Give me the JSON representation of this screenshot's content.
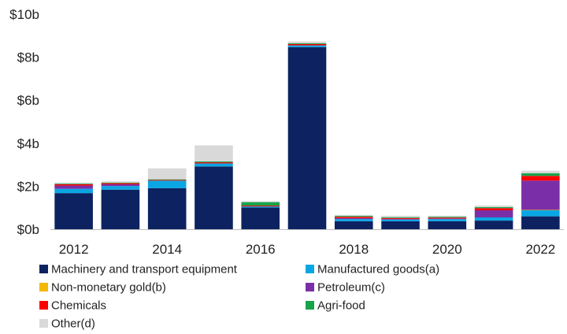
{
  "chart_data": {
    "type": "bar",
    "stacked": true,
    "title": "",
    "xlabel": "",
    "ylabel": "",
    "categories": [
      "2012",
      "2013",
      "2014",
      "2015",
      "2016",
      "2017",
      "2018",
      "2019",
      "2020",
      "2021",
      "2022"
    ],
    "x_tick_labels": [
      "2012",
      "",
      "2014",
      "",
      "2016",
      "",
      "2018",
      "",
      "2020",
      "",
      "2022"
    ],
    "ylim": [
      0,
      10
    ],
    "y_ticks": [
      0,
      2,
      4,
      6,
      8,
      10
    ],
    "y_tick_labels": [
      "$0b",
      "$2b",
      "$4b",
      "$6b",
      "$8b",
      "$10b"
    ],
    "grid": false,
    "legend_position": "bottom",
    "series": [
      {
        "name": "Machinery and transport equipment",
        "color": "#0d2260",
        "values": [
          1.68,
          1.84,
          1.91,
          2.92,
          1.01,
          8.47,
          0.37,
          0.37,
          0.37,
          0.4,
          0.6
        ]
      },
      {
        "name": "Manufactured goods(a)",
        "color": "#0aa6e3",
        "values": [
          0.2,
          0.17,
          0.35,
          0.14,
          0.05,
          0.08,
          0.1,
          0.08,
          0.1,
          0.15,
          0.28
        ]
      },
      {
        "name": "Non-monetary gold(b)",
        "color": "#f5b800",
        "values": [
          0.0,
          0.0,
          0.0,
          0.0,
          0.0,
          0.0,
          0.0,
          0.0,
          0.0,
          0.0,
          0.02
        ]
      },
      {
        "name": "Petroleum(c)",
        "color": "#7a2fa8",
        "values": [
          0.15,
          0.08,
          0.0,
          0.0,
          0.0,
          0.0,
          0.05,
          0.03,
          0.03,
          0.33,
          1.36
        ]
      },
      {
        "name": "Chemicals",
        "color": "#ff0000",
        "values": [
          0.06,
          0.05,
          0.03,
          0.05,
          0.04,
          0.06,
          0.06,
          0.04,
          0.04,
          0.1,
          0.22
        ]
      },
      {
        "name": "Agri-food",
        "color": "#17a34a",
        "values": [
          0.03,
          0.03,
          0.03,
          0.04,
          0.16,
          0.04,
          0.04,
          0.04,
          0.04,
          0.05,
          0.12
        ]
      },
      {
        "name": "Other(d)",
        "color": "#d9d9d9",
        "values": [
          0.05,
          0.06,
          0.51,
          0.75,
          0.04,
          0.08,
          0.05,
          0.07,
          0.05,
          0.08,
          0.12
        ]
      }
    ]
  }
}
